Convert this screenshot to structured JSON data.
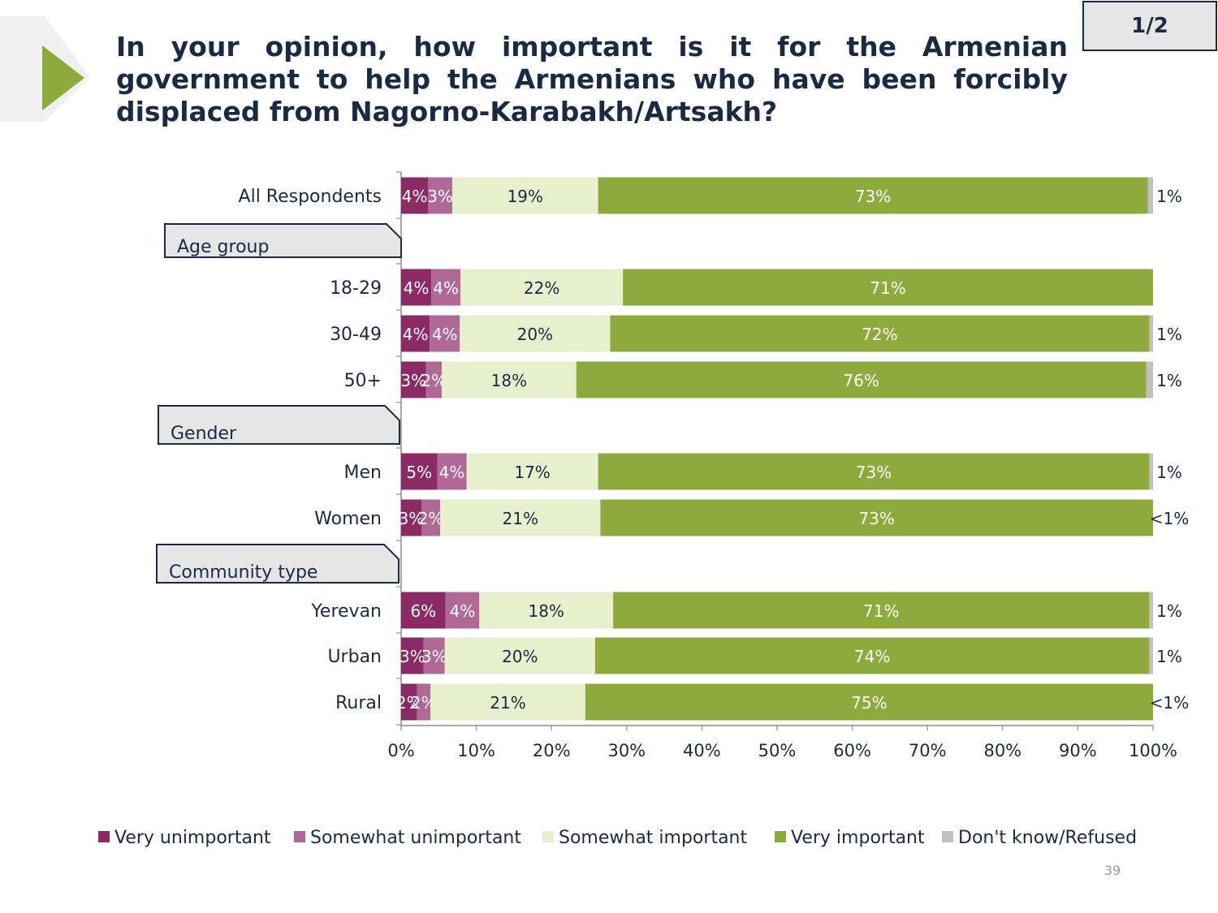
{
  "slide": {
    "title": "In your opinion, how important is it for the Armenian government to help the Armenians who have been forcibly displaced from Nagorno-Karabakh/Artsakh?",
    "page_badge": "1/2",
    "page_number": "39",
    "colors": {
      "very_unimportant": "#8b2a64",
      "somewhat_unimportant": "#b06896",
      "somewhat_important": "#e7efcc",
      "very_important": "#8daa3c",
      "dont_know": "#c0c0c0",
      "title": "#1b2a44",
      "arrow": "#8daa3c"
    }
  },
  "chart_data": {
    "type": "bar",
    "orientation": "horizontal",
    "stacked": true,
    "percent": true,
    "xlim": [
      0,
      100
    ],
    "x_ticks": [
      "0%",
      "10%",
      "20%",
      "30%",
      "40%",
      "50%",
      "60%",
      "70%",
      "80%",
      "90%",
      "100%"
    ],
    "legend_position": "bottom",
    "groups": [
      {
        "label": "",
        "rows": [
          {
            "label": "All Respondents",
            "values": [
              3.6,
              3.2,
              19.4,
              73.1,
              0.7
            ],
            "labels": [
              "4%",
              "3%",
              "19%",
              "73%",
              "1%"
            ]
          }
        ]
      },
      {
        "label": "Age group",
        "rows": [
          {
            "label": "18-29",
            "values": [
              4.0,
              3.9,
              21.6,
              70.5,
              0.0
            ],
            "labels": [
              "4%",
              "4%",
              "22%",
              "71%",
              ""
            ]
          },
          {
            "label": "30-49",
            "values": [
              3.8,
              4.0,
              20.0,
              71.7,
              0.5
            ],
            "labels": [
              "4%",
              "4%",
              "20%",
              "72%",
              "1%"
            ]
          },
          {
            "label": "50+",
            "values": [
              3.3,
              2.1,
              17.9,
              75.8,
              0.9
            ],
            "labels": [
              "3%",
              "2%",
              "18%",
              "76%",
              "1%"
            ]
          }
        ]
      },
      {
        "label": "Gender",
        "rows": [
          {
            "label": "Men",
            "values": [
              4.8,
              3.9,
              17.5,
              73.3,
              0.5
            ],
            "labels": [
              "5%",
              "4%",
              "17%",
              "73%",
              "1%"
            ]
          },
          {
            "label": "Women",
            "values": [
              2.7,
              2.5,
              21.3,
              73.5,
              0.0
            ],
            "labels": [
              "3%",
              "2%",
              "21%",
              "73%",
              "<1%"
            ]
          }
        ]
      },
      {
        "label": "Community type",
        "rows": [
          {
            "label": "Yerevan",
            "values": [
              5.9,
              4.5,
              17.8,
              71.3,
              0.5
            ],
            "labels": [
              "6%",
              "4%",
              "18%",
              "71%",
              "1%"
            ]
          },
          {
            "label": "Urban",
            "values": [
              3.0,
              2.8,
              20.0,
              73.7,
              0.5
            ],
            "labels": [
              "3%",
              "3%",
              "20%",
              "74%",
              "1%"
            ]
          },
          {
            "label": "Rural",
            "values": [
              2.1,
              1.8,
              20.6,
              75.5,
              0.0
            ],
            "labels": [
              "2%",
              "2%",
              "21%",
              "75%",
              "<1%"
            ]
          }
        ]
      }
    ],
    "series": [
      {
        "name": "Very unimportant",
        "color": "#8b2a64",
        "label_color": "#ffffff"
      },
      {
        "name": "Somewhat unimportant",
        "color": "#b06896",
        "label_color": "#ffffff"
      },
      {
        "name": "Somewhat important",
        "color": "#e7efcc",
        "label_color": "#1b2a44"
      },
      {
        "name": "Very important",
        "color": "#8daa3c",
        "label_color": "#ffffff"
      },
      {
        "name": "Don't know/Refused",
        "color": "#c0c0c0",
        "label_color": "#1b2a44"
      }
    ]
  }
}
